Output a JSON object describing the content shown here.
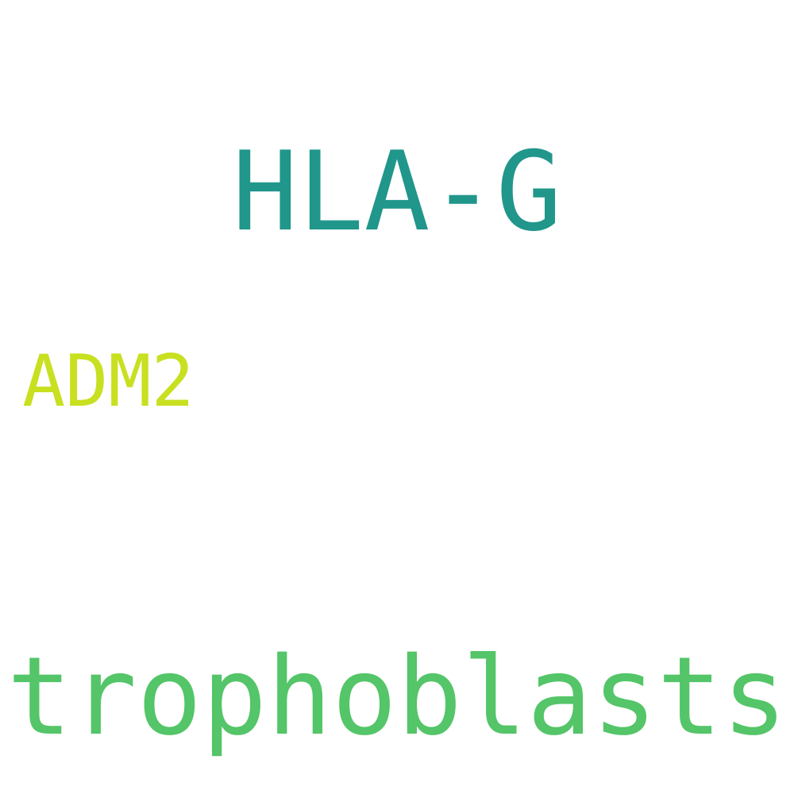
{
  "words": [
    {
      "text": "HLA-G",
      "color": "#21968b"
    },
    {
      "text": "ADM2",
      "color": "#c8e020"
    },
    {
      "text": "trophoblasts",
      "color": "#54c568"
    }
  ]
}
